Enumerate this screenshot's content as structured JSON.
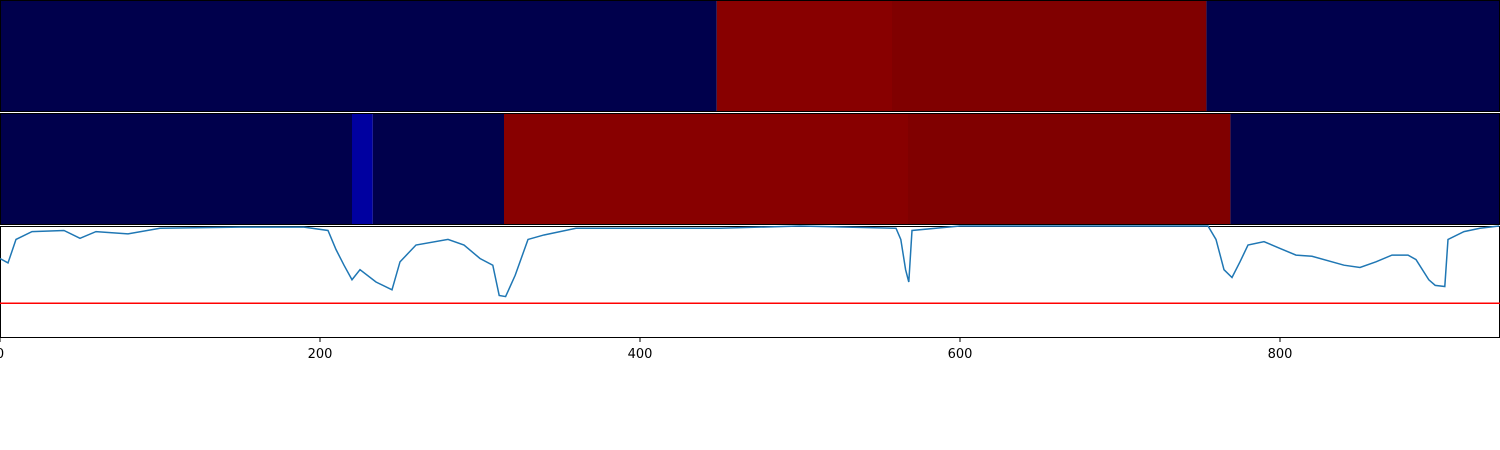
{
  "chart_data": [
    {
      "type": "heatmap",
      "edges": [
        0,
        448,
        557.5,
        754,
        937.5
      ],
      "values": [
        0,
        0.98,
        1,
        0
      ],
      "colors": [
        "#00004c",
        "#880000",
        "#800000",
        "#00004c"
      ],
      "xlim": [
        0,
        937.5
      ]
    },
    {
      "type": "heatmap",
      "edges": [
        0,
        220,
        233,
        315,
        567.5,
        769,
        937.5
      ],
      "values": [
        0,
        0.08,
        0,
        0.98,
        1,
        0
      ],
      "colors": [
        "#00004c",
        "#0000a0",
        "#00004c",
        "#880000",
        "#800000",
        "#00004c"
      ],
      "xlim": [
        0,
        937.5
      ]
    },
    {
      "type": "line",
      "color": "#1f77b4",
      "threshold": 0.31,
      "threshold_color": "#ff0000",
      "xlim": [
        0,
        937.5
      ],
      "ylim": [
        0,
        1
      ],
      "xticks": [
        0,
        200,
        400,
        600,
        800
      ],
      "x": [
        0,
        5,
        10,
        20,
        40,
        50,
        60,
        80,
        100,
        150,
        190,
        205,
        210,
        215,
        220,
        225,
        235,
        245,
        250,
        260,
        280,
        290,
        300,
        308,
        312,
        316,
        322,
        330,
        340,
        360,
        400,
        450,
        500,
        560,
        563,
        566,
        568,
        570,
        600,
        700,
        755,
        760,
        765,
        770,
        775,
        780,
        790,
        800,
        810,
        820,
        840,
        850,
        860,
        870,
        880,
        885,
        893,
        897,
        903,
        905,
        915,
        925,
        937
      ],
      "values": [
        0.71,
        0.67,
        0.88,
        0.95,
        0.96,
        0.89,
        0.95,
        0.93,
        0.98,
        0.99,
        0.99,
        0.96,
        0.79,
        0.65,
        0.52,
        0.61,
        0.5,
        0.43,
        0.68,
        0.83,
        0.88,
        0.83,
        0.71,
        0.65,
        0.38,
        0.37,
        0.56,
        0.88,
        0.92,
        0.98,
        0.98,
        0.98,
        1.0,
        0.98,
        0.88,
        0.61,
        0.5,
        0.96,
        1.0,
        1.0,
        1.0,
        0.88,
        0.61,
        0.54,
        0.68,
        0.83,
        0.86,
        0.8,
        0.74,
        0.73,
        0.65,
        0.63,
        0.68,
        0.74,
        0.74,
        0.7,
        0.52,
        0.47,
        0.46,
        0.88,
        0.95,
        0.98,
        1.0
      ]
    }
  ]
}
